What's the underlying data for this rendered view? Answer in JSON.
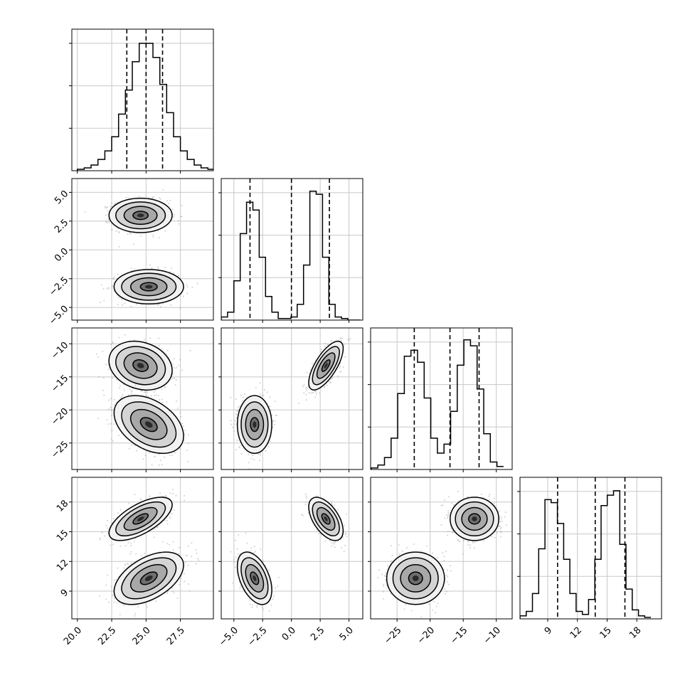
{
  "chart_data": {
    "type": "corner",
    "parameters": [
      {
        "index": 0,
        "range": [
          19.6,
          29.9
        ],
        "ticks": [
          20.0,
          22.5,
          25.0,
          27.5
        ],
        "tick_labels": [
          "20.0",
          "22.5",
          "25.0",
          "27.5"
        ],
        "quantiles": [
          23.6,
          25.0,
          26.2
        ],
        "hist": {
          "edges_start": 20.0,
          "bin_width": 0.5,
          "counts": [
            1,
            2,
            4,
            8,
            14,
            24,
            40,
            57,
            77,
            90,
            90,
            80,
            61,
            41,
            24,
            14,
            8,
            4,
            2,
            1
          ]
        },
        "hist_ymax": 100
      },
      {
        "index": 1,
        "range": [
          -6.1,
          6.2
        ],
        "ticks": [
          -5.0,
          -2.5,
          0.0,
          2.5,
          5.0
        ],
        "tick_labels": [
          "−5.0",
          "−2.5",
          "0.0",
          "2.5",
          "5.0"
        ],
        "quantiles": [
          -3.6,
          0.0,
          3.3
        ],
        "hist": {
          "edges_start": -6.1,
          "bin_width": 0.55,
          "counts": [
            2,
            5,
            25,
            55,
            75,
            70,
            40,
            15,
            5,
            1,
            1,
            2,
            10,
            35,
            82,
            80,
            40,
            10,
            2,
            1,
            0,
            0
          ]
        },
        "hist_ymax": 90
      },
      {
        "index": 2,
        "range": [
          -29.0,
          -7.6
        ],
        "ticks": [
          -25,
          -20,
          -15,
          -10
        ],
        "tick_labels": [
          "−25",
          "−20",
          "−15",
          "−10"
        ],
        "quantiles": [
          -22.4,
          -17.0,
          -12.6
        ],
        "hist": {
          "edges_start": -28.9,
          "bin_width": 1.0,
          "counts": [
            1,
            3,
            8,
            21,
            51,
            76,
            80,
            72,
            48,
            21,
            11,
            17,
            39,
            70,
            87,
            83,
            54,
            24,
            5,
            2
          ]
        },
        "hist_ymax": 95
      },
      {
        "index": 3,
        "range": [
          6.2,
          20.5
        ],
        "ticks": [
          9,
          12,
          15,
          18
        ],
        "tick_labels": [
          "9",
          "12",
          "15",
          "18"
        ],
        "quantiles": [
          10.0,
          13.8,
          16.8
        ],
        "hist": {
          "edges_start": 6.2,
          "bin_width": 0.63,
          "counts": [
            2,
            5,
            17,
            47,
            80,
            78,
            64,
            40,
            17,
            5,
            3,
            13,
            40,
            76,
            83,
            86,
            50,
            20,
            6,
            2,
            1
          ]
        },
        "hist_ymax": 95
      }
    ],
    "components": [
      {
        "mean": [
          24.6,
          3.0,
          -13.3,
          16.3
        ],
        "std": [
          1.0,
          0.65,
          1.6,
          0.95
        ]
      },
      {
        "mean": [
          25.2,
          -3.2,
          -22.2,
          10.3
        ],
        "std": [
          1.1,
          0.65,
          1.9,
          1.15
        ]
      }
    ],
    "pair_correlation": {
      "1-0": [
        0.0,
        0.0
      ],
      "2-0": [
        -0.2,
        -0.4
      ],
      "3-0": [
        0.65,
        0.5
      ],
      "2-1": [
        0.7,
        0.0
      ],
      "3-1": [
        -0.55,
        -0.45
      ],
      "3-2": [
        0.0,
        0.0
      ]
    },
    "grid": true,
    "quantile_line_style": "dashed"
  }
}
